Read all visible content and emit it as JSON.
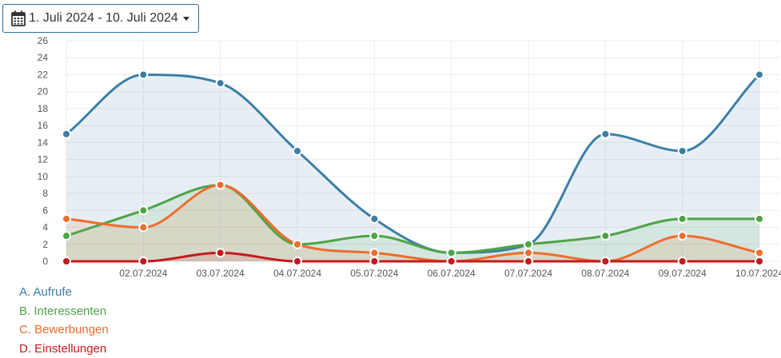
{
  "date_range": {
    "label": "1. Juli 2024 - 10. Juli 2024",
    "icon": "calendar-icon"
  },
  "chart_data": {
    "type": "area",
    "x": [
      "01.07.2024",
      "02.07.2024",
      "03.07.2024",
      "04.07.2024",
      "05.07.2024",
      "06.07.2024",
      "07.07.2024",
      "08.07.2024",
      "09.07.2024",
      "10.07.2024"
    ],
    "x_tick_labels": [
      "",
      "02.07.2024",
      "03.07.2024",
      "04.07.2024",
      "05.07.2024",
      "06.07.2024",
      "07.07.2024",
      "08.07.2024",
      "09.07.2024",
      "10.07.2024"
    ],
    "ylim": [
      0,
      26
    ],
    "y_ticks": [
      0,
      2,
      4,
      6,
      8,
      10,
      12,
      14,
      16,
      18,
      20,
      22,
      24,
      26
    ],
    "grid": true,
    "legend_position": "bottom-left",
    "series": [
      {
        "name": "A. Aufrufe",
        "color": "#3c7ea6",
        "values": [
          15,
          22,
          21,
          13,
          5,
          1,
          2,
          15,
          13,
          22
        ]
      },
      {
        "name": "B. Interessenten",
        "color": "#4ea447",
        "values": [
          3,
          6,
          9,
          2,
          3,
          1,
          2,
          3,
          5,
          5
        ]
      },
      {
        "name": "C. Bewerbungen",
        "color": "#ee6c2c",
        "values": [
          5,
          4,
          9,
          2,
          1,
          0,
          1,
          0,
          3,
          1
        ]
      },
      {
        "name": "D. Einstellungen",
        "color": "#c41a1a",
        "values": [
          0,
          0,
          1,
          0,
          0,
          0,
          0,
          0,
          0,
          0
        ]
      }
    ]
  }
}
